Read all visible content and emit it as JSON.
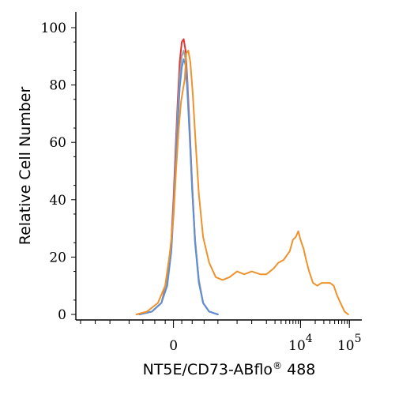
{
  "chart_data": {
    "type": "line",
    "title": "",
    "xlabel": "NT5E/CD73-ABflo® 488",
    "xlabel_main": "NT5E/CD73-ABflo",
    "xlabel_mark": "®",
    "xlabel_tail": " 488",
    "ylabel": "Relative Cell Number",
    "ylim": [
      0,
      100
    ],
    "y_ticks": [
      0,
      20,
      40,
      60,
      80,
      100
    ],
    "y_tick_labels": [
      "0",
      "20",
      "40",
      "60",
      "80",
      "100"
    ],
    "x_scale": "biexponential",
    "x_ticks": [
      {
        "value": 0,
        "base": "0",
        "exp": ""
      },
      {
        "value": 10000,
        "base": "10",
        "exp": "4"
      },
      {
        "value": 100000,
        "base": "10",
        "exp": "5"
      }
    ],
    "grid": false,
    "legend": "none",
    "series": [
      {
        "color": "#e3342f",
        "points": [
          [
            -120,
            0
          ],
          [
            -60,
            1
          ],
          [
            -30,
            4
          ],
          [
            -15,
            12
          ],
          [
            -5,
            26
          ],
          [
            0,
            40
          ],
          [
            5,
            58
          ],
          [
            10,
            74
          ],
          [
            15,
            88
          ],
          [
            20,
            95
          ],
          [
            25,
            96
          ],
          [
            30,
            92
          ],
          [
            35,
            82
          ],
          [
            42,
            65
          ],
          [
            50,
            45
          ],
          [
            60,
            26
          ],
          [
            75,
            12
          ],
          [
            95,
            4
          ],
          [
            130,
            1
          ],
          [
            200,
            0
          ]
        ]
      },
      {
        "color": "#9aa0a6",
        "points": [
          [
            -120,
            0
          ],
          [
            -60,
            1
          ],
          [
            -30,
            4
          ],
          [
            -15,
            11
          ],
          [
            -5,
            24
          ],
          [
            0,
            37
          ],
          [
            5,
            54
          ],
          [
            10,
            70
          ],
          [
            15,
            83
          ],
          [
            20,
            90
          ],
          [
            25,
            92
          ],
          [
            30,
            89
          ],
          [
            35,
            80
          ],
          [
            42,
            63
          ],
          [
            50,
            44
          ],
          [
            60,
            26
          ],
          [
            75,
            12
          ],
          [
            95,
            4
          ],
          [
            130,
            1
          ],
          [
            200,
            0
          ]
        ]
      },
      {
        "color": "#5b8fd6",
        "points": [
          [
            -120,
            0
          ],
          [
            -60,
            1
          ],
          [
            -30,
            4
          ],
          [
            -15,
            10
          ],
          [
            -5,
            22
          ],
          [
            0,
            35
          ],
          [
            5,
            51
          ],
          [
            10,
            66
          ],
          [
            15,
            79
          ],
          [
            20,
            86
          ],
          [
            25,
            89
          ],
          [
            30,
            87
          ],
          [
            35,
            78
          ],
          [
            42,
            62
          ],
          [
            50,
            43
          ],
          [
            60,
            25
          ],
          [
            75,
            11
          ],
          [
            95,
            4
          ],
          [
            130,
            1
          ],
          [
            200,
            0
          ]
        ]
      },
      {
        "color": "#f0922b",
        "points": [
          [
            -140,
            0
          ],
          [
            -80,
            1
          ],
          [
            -40,
            4
          ],
          [
            -20,
            10
          ],
          [
            -8,
            22
          ],
          [
            0,
            34
          ],
          [
            6,
            50
          ],
          [
            12,
            64
          ],
          [
            18,
            74
          ],
          [
            24,
            79
          ],
          [
            28,
            82
          ],
          [
            32,
            91
          ],
          [
            38,
            92
          ],
          [
            44,
            88
          ],
          [
            52,
            77
          ],
          [
            62,
            60
          ],
          [
            75,
            42
          ],
          [
            95,
            27
          ],
          [
            130,
            18
          ],
          [
            180,
            13
          ],
          [
            250,
            12
          ],
          [
            350,
            13
          ],
          [
            500,
            15
          ],
          [
            700,
            14
          ],
          [
            1000,
            15
          ],
          [
            1500,
            14
          ],
          [
            2000,
            14
          ],
          [
            2800,
            16
          ],
          [
            3500,
            18
          ],
          [
            4500,
            19
          ],
          [
            6000,
            22
          ],
          [
            7000,
            26
          ],
          [
            8000,
            27
          ],
          [
            9000,
            29
          ],
          [
            10000,
            26
          ],
          [
            11500,
            23
          ],
          [
            13000,
            19
          ],
          [
            15000,
            15
          ],
          [
            18000,
            11
          ],
          [
            22000,
            10
          ],
          [
            27000,
            11
          ],
          [
            33000,
            11
          ],
          [
            40000,
            11
          ],
          [
            48000,
            10
          ],
          [
            55000,
            7
          ],
          [
            62000,
            5
          ],
          [
            70000,
            3
          ],
          [
            80000,
            1
          ],
          [
            95000,
            0
          ]
        ]
      }
    ]
  }
}
